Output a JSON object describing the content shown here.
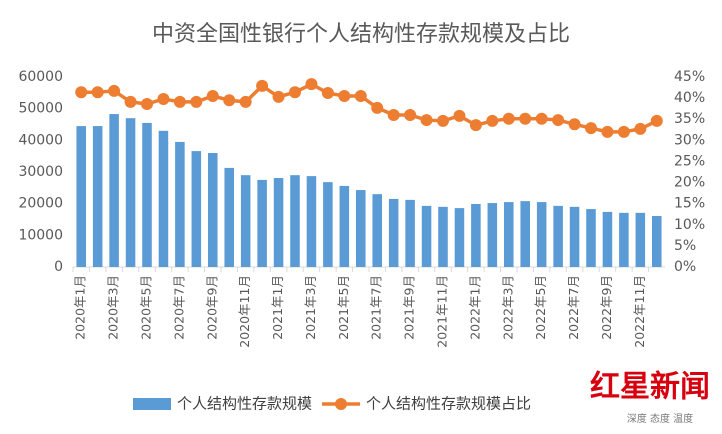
{
  "chart_data": {
    "type": "bar_line",
    "title": "中资全国性银行个人结构性存款规模及占比",
    "categories": [
      "2020年1月",
      null,
      "2020年3月",
      null,
      "2020年5月",
      null,
      "2020年7月",
      null,
      "2020年9月",
      null,
      "2020年11月",
      null,
      "2021年1月",
      null,
      "2021年3月",
      null,
      "2021年5月",
      null,
      "2021年7月",
      null,
      "2021年9月",
      null,
      "2021年11月",
      null,
      "2022年1月",
      null,
      "2022年3月",
      null,
      "2022年5月",
      null,
      "2022年7月",
      null,
      "2022年9月",
      null,
      "2022年11月",
      null
    ],
    "series": [
      {
        "name": "个人结构性存款规模",
        "type": "bar",
        "color": "#5b9bd5",
        "values": [
          44500,
          44500,
          48300,
          47000,
          45500,
          43000,
          39500,
          36600,
          36000,
          31300,
          29000,
          27500,
          28100,
          29000,
          28700,
          26800,
          25600,
          24300,
          23000,
          21500,
          21200,
          19300,
          19000,
          18600,
          19900,
          20200,
          20500,
          20800,
          20500,
          19300,
          19000,
          18300,
          17400,
          17100,
          17100,
          16100
        ]
      },
      {
        "name": "个人结构性存款规模占比",
        "type": "line",
        "axis": "y2",
        "color": "#ed7d31",
        "values": [
          41.4,
          41.4,
          41.7,
          39.1,
          38.6,
          39.8,
          39.1,
          39.1,
          40.5,
          39.5,
          39.1,
          42.9,
          40.3,
          41.4,
          43.3,
          41.2,
          40.5,
          40.5,
          37.7,
          36.0,
          36.0,
          34.8,
          34.6,
          35.8,
          33.6,
          34.6,
          35.1,
          35.1,
          35.1,
          34.8,
          33.8,
          32.9,
          32.0,
          32.0,
          32.7,
          34.6
        ]
      }
    ],
    "ylim": [
      0,
      60000
    ],
    "yticks": [
      0,
      10000,
      20000,
      30000,
      40000,
      50000,
      60000
    ],
    "y2lim": [
      0,
      45
    ],
    "y2ticks": [
      {
        "value": 0,
        "label": "0%"
      },
      {
        "value": 5,
        "label": "5%"
      },
      {
        "value": 10,
        "label": "10%"
      },
      {
        "value": 15,
        "label": "15%"
      },
      {
        "value": 20,
        "label": "20%"
      },
      {
        "value": 25,
        "label": "25%"
      },
      {
        "value": 30,
        "label": "30%"
      },
      {
        "value": 35,
        "label": "35%"
      },
      {
        "value": 40,
        "label": "40%"
      },
      {
        "value": 45,
        "label": "45%"
      }
    ],
    "grid": false,
    "legend": "bottom"
  },
  "brand": {
    "name": "红星新闻",
    "slogan": "深度 态度 温度"
  }
}
